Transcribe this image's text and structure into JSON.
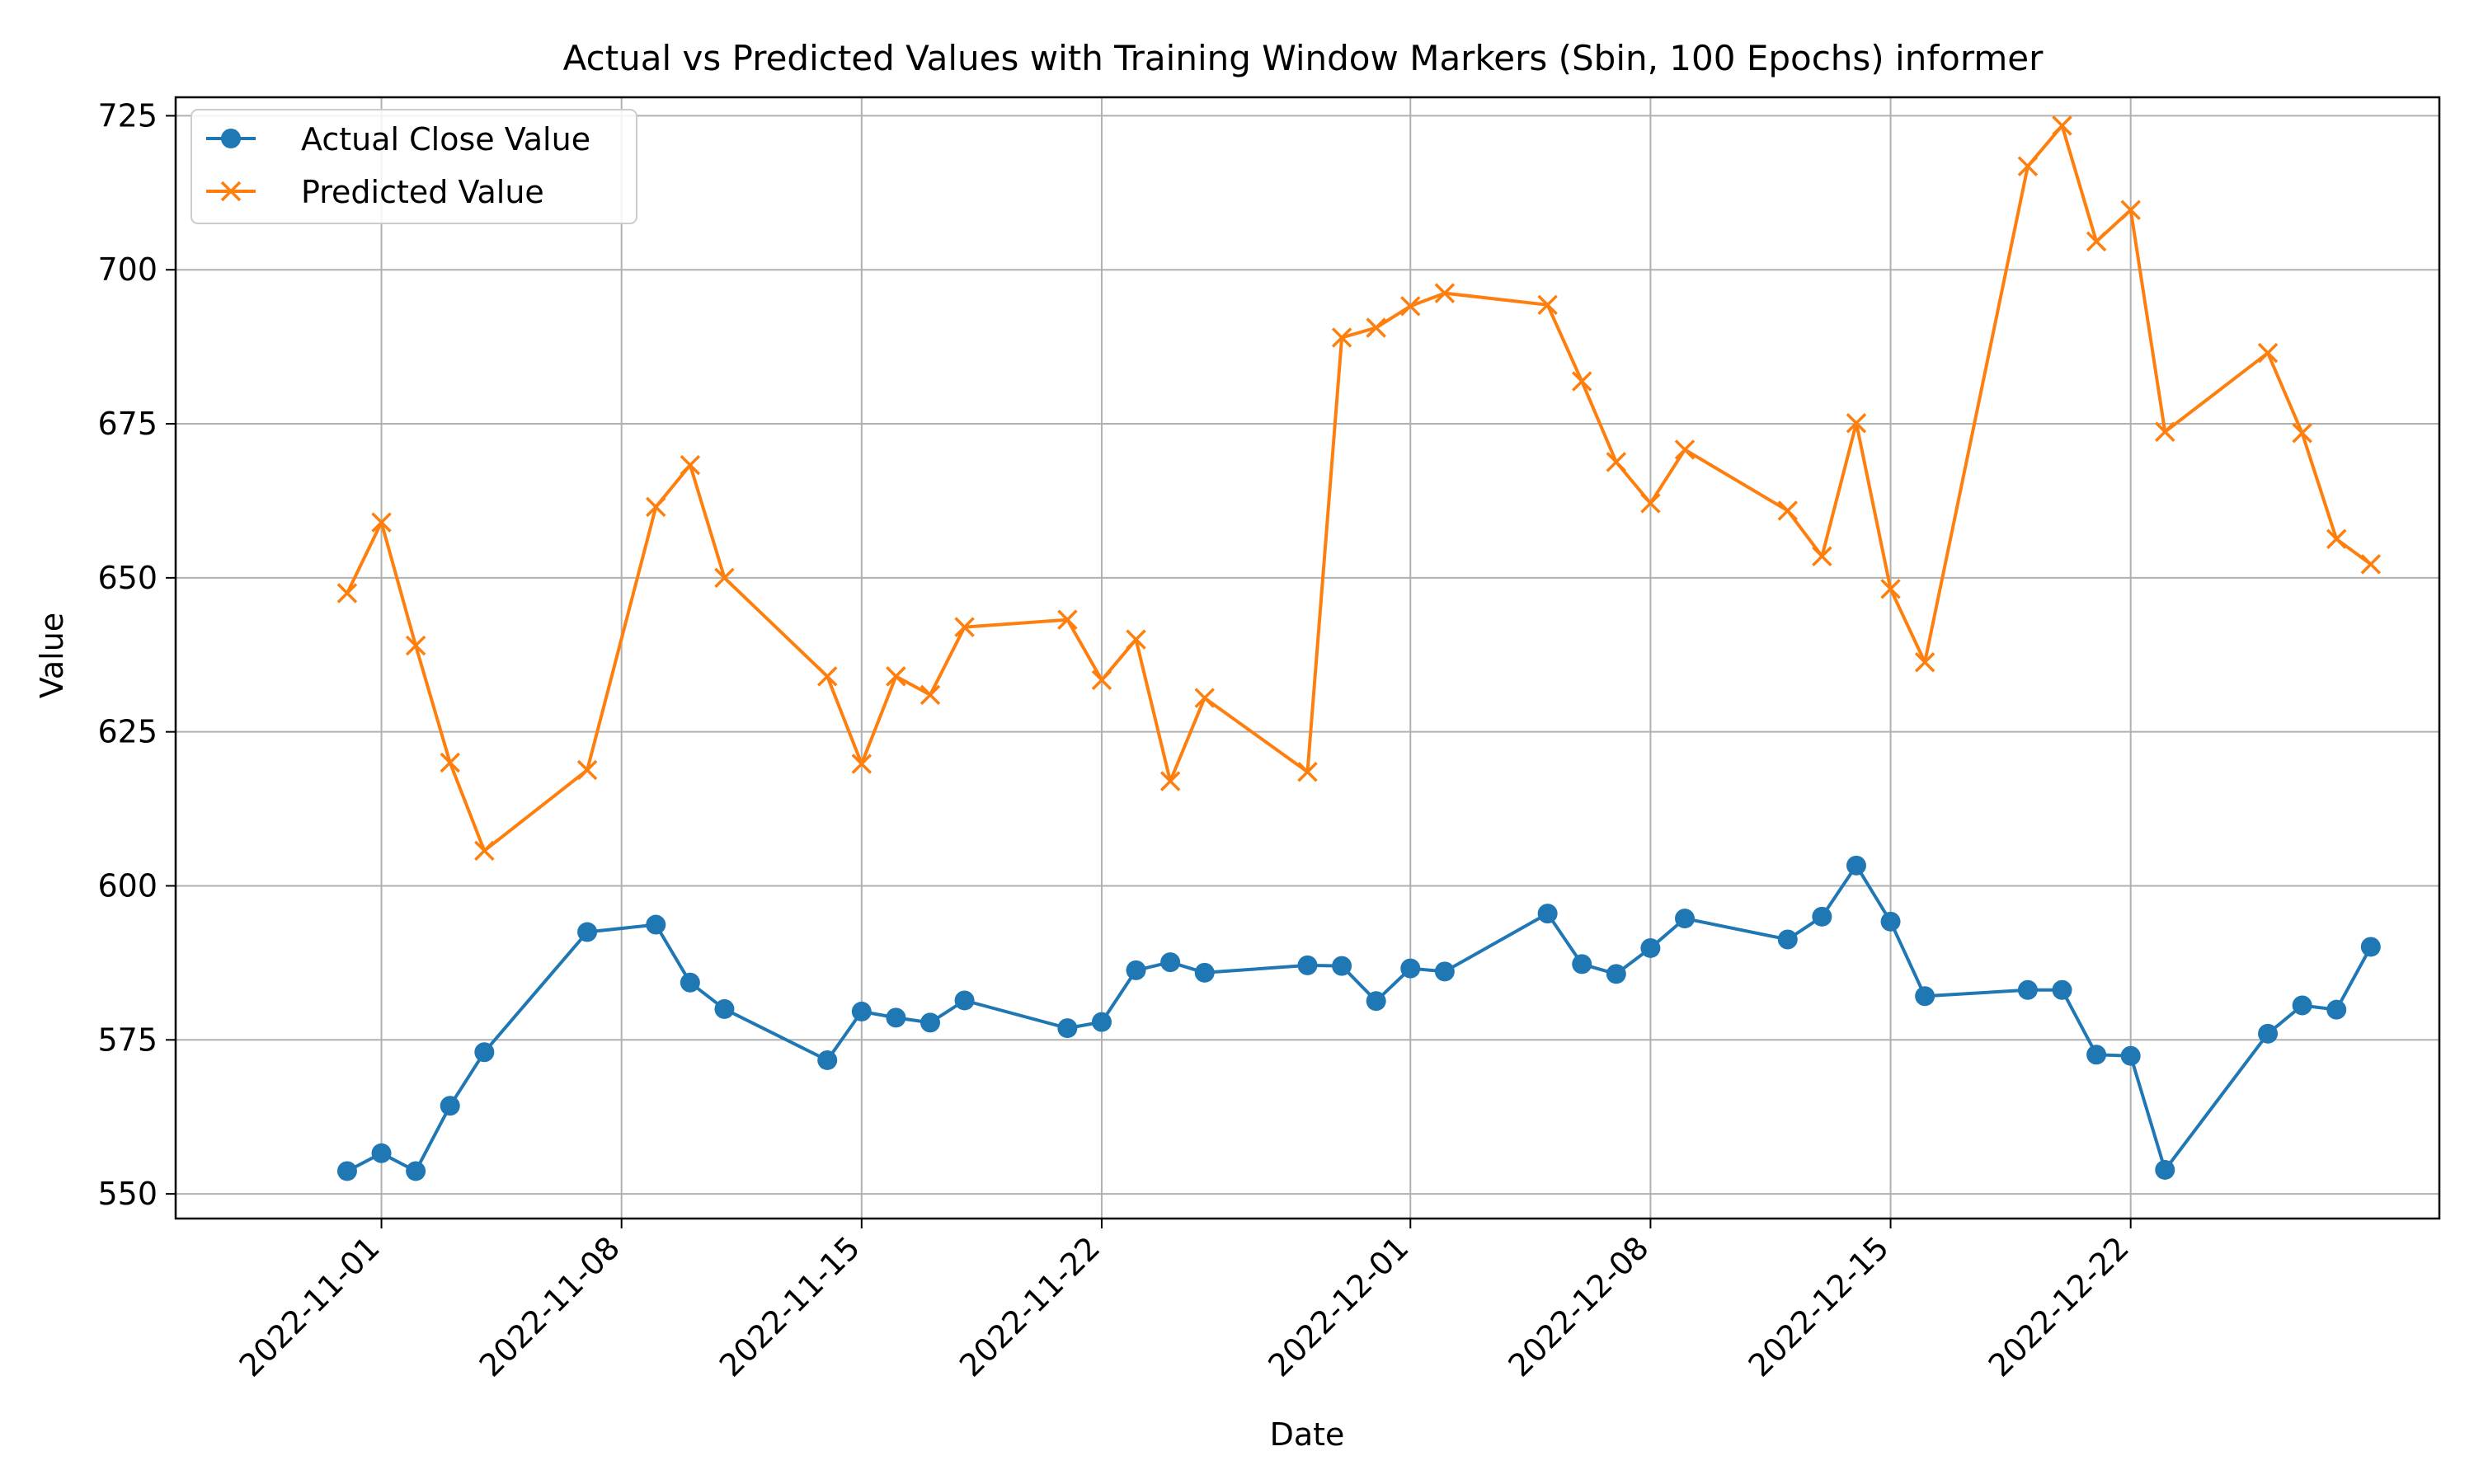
{
  "chart_data": {
    "type": "line",
    "title": "Actual vs Predicted Values with Training Window Markers (Sbin, 100 Epochs) informer",
    "xlabel": "Date",
    "ylabel": "Value",
    "ylim": [
      546,
      728
    ],
    "xlim": [
      "2022-10-26",
      "2022-12-31"
    ],
    "grid": true,
    "legend_position": "top-left",
    "x_ticks": [
      "2022-11-01",
      "2022-11-08",
      "2022-11-15",
      "2022-11-22",
      "2022-12-01",
      "2022-12-08",
      "2022-12-15",
      "2022-12-22"
    ],
    "y_ticks": [
      550,
      575,
      600,
      625,
      650,
      675,
      700,
      725
    ],
    "x": [
      "2022-10-31",
      "2022-11-01",
      "2022-11-02",
      "2022-11-03",
      "2022-11-04",
      "2022-11-07",
      "2022-11-09",
      "2022-11-10",
      "2022-11-11",
      "2022-11-14",
      "2022-11-15",
      "2022-11-16",
      "2022-11-17",
      "2022-11-18",
      "2022-11-21",
      "2022-11-22",
      "2022-11-23",
      "2022-11-24",
      "2022-11-25",
      "2022-11-28",
      "2022-11-29",
      "2022-11-30",
      "2022-12-01",
      "2022-12-02",
      "2022-12-05",
      "2022-12-06",
      "2022-12-07",
      "2022-12-08",
      "2022-12-09",
      "2022-12-12",
      "2022-12-13",
      "2022-12-14",
      "2022-12-15",
      "2022-12-16",
      "2022-12-19",
      "2022-12-20",
      "2022-12-21",
      "2022-12-22",
      "2022-12-23",
      "2022-12-26",
      "2022-12-27",
      "2022-12-28",
      "2022-12-29"
    ],
    "series": [
      {
        "name": "Actual Close Value",
        "color": "#1f77b4",
        "marker": "circle",
        "values": [
          553.7,
          556.6,
          553.7,
          564.3,
          573.0,
          592.5,
          593.7,
          584.3,
          580.0,
          571.7,
          579.6,
          578.6,
          577.8,
          581.4,
          576.9,
          577.9,
          586.3,
          587.6,
          585.9,
          587.1,
          587.0,
          581.3,
          586.6,
          586.1,
          595.5,
          587.3,
          585.7,
          589.9,
          594.7,
          591.3,
          595.0,
          603.3,
          594.2,
          582.1,
          583.1,
          583.1,
          572.6,
          572.4,
          553.9,
          576.0,
          580.6,
          579.9,
          590.1
        ]
      },
      {
        "name": "Predicted Value",
        "color": "#ff7f0e",
        "marker": "x",
        "values": [
          647.5,
          659.0,
          639.0,
          620.0,
          605.7,
          618.8,
          661.5,
          668.3,
          650.0,
          634.0,
          619.8,
          634.0,
          631.0,
          642.0,
          643.2,
          633.4,
          640.0,
          617.0,
          630.5,
          618.5,
          689.0,
          690.6,
          694.1,
          696.2,
          694.3,
          681.9,
          668.8,
          662.1,
          670.8,
          660.9,
          653.5,
          675.1,
          648.2,
          636.3,
          716.8,
          723.4,
          704.6,
          709.7,
          673.7,
          686.5,
          673.5,
          656.3,
          652.2
        ]
      }
    ]
  }
}
